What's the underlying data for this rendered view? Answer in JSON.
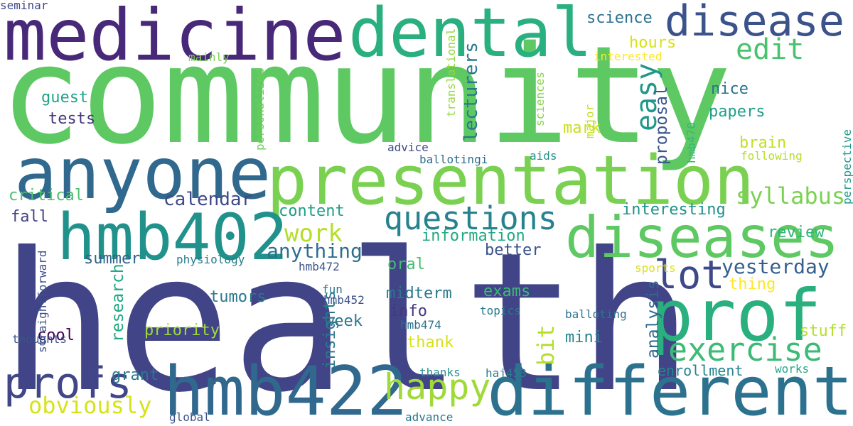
{
  "words": [
    {
      "text": "health",
      "color": "#414487",
      "vertical": false
    },
    {
      "text": "community",
      "color": "#5ec962",
      "vertical": false
    },
    {
      "text": "medicine",
      "color": "#482878",
      "vertical": false
    },
    {
      "text": "dental",
      "color": "#2aaf7f",
      "vertical": false
    },
    {
      "text": "disease",
      "color": "#3b528b",
      "vertical": false
    },
    {
      "text": "presentation",
      "color": "#7ad151",
      "vertical": false
    },
    {
      "text": "anyone",
      "color": "#31688e",
      "vertical": false
    },
    {
      "text": "hmb402",
      "color": "#21918c",
      "vertical": false
    },
    {
      "text": "diseases",
      "color": "#5ec962",
      "vertical": false
    },
    {
      "text": "prof",
      "color": "#2aaf7f",
      "vertical": false
    },
    {
      "text": "hmb422",
      "color": "#31688e",
      "vertical": false
    },
    {
      "text": "different",
      "color": "#2c728e",
      "vertical": false
    },
    {
      "text": "exercise",
      "color": "#3cbb75",
      "vertical": false
    },
    {
      "text": "profs",
      "color": "#404688",
      "vertical": false
    },
    {
      "text": "happy",
      "color": "#a0da39",
      "vertical": false
    },
    {
      "text": "lot",
      "color": "#3f4889",
      "vertical": false
    },
    {
      "text": "questions",
      "color": "#26828e",
      "vertical": false
    },
    {
      "text": "edit",
      "color": "#4ac16d",
      "vertical": false
    },
    {
      "text": "syllabus",
      "color": "#7ad151",
      "vertical": false
    },
    {
      "text": "work",
      "color": "#b5de2b",
      "vertical": false
    },
    {
      "text": "obviously",
      "color": "#d8e219",
      "vertical": false
    },
    {
      "text": "yesterday",
      "color": "#35608d",
      "vertical": false
    },
    {
      "text": "anything",
      "color": "#2e6f8e",
      "vertical": false
    },
    {
      "text": "calendar",
      "color": "#3e4a89",
      "vertical": false
    },
    {
      "text": "easy",
      "color": "#1f988b",
      "vertical": true
    },
    {
      "text": "tests",
      "color": "#453781",
      "vertical": false
    },
    {
      "text": "guest",
      "color": "#20a486",
      "vertical": false
    },
    {
      "text": "hours",
      "color": "#d8e219",
      "vertical": false
    },
    {
      "text": "science",
      "color": "#2c728e",
      "vertical": false
    },
    {
      "text": "nice",
      "color": "#2c728e",
      "vertical": false
    },
    {
      "text": "papers",
      "color": "#1f9e89",
      "vertical": false
    },
    {
      "text": "mark",
      "color": "#c8e020",
      "vertical": false
    },
    {
      "text": "brain",
      "color": "#c2df23",
      "vertical": false
    },
    {
      "text": "lecturers",
      "color": "#2a788e",
      "vertical": true
    },
    {
      "text": "proposal",
      "color": "#39568c",
      "vertical": true
    },
    {
      "text": "interesting",
      "color": "#21918c",
      "vertical": false
    },
    {
      "text": "review",
      "color": "#2fb47c",
      "vertical": false
    },
    {
      "text": "critical",
      "color": "#4ac16d",
      "vertical": false
    },
    {
      "text": "fall",
      "color": "#414487",
      "vertical": false
    },
    {
      "text": "content",
      "color": "#1f9e89",
      "vertical": false
    },
    {
      "text": "information",
      "color": "#22a884",
      "vertical": false
    },
    {
      "text": "summer",
      "color": "#33638d",
      "vertical": false
    },
    {
      "text": "physiology",
      "color": "#287d8e",
      "vertical": false
    },
    {
      "text": "oral",
      "color": "#44bf70",
      "vertical": false
    },
    {
      "text": "better",
      "color": "#3b528b",
      "vertical": false
    },
    {
      "text": "tumors",
      "color": "#2a788e",
      "vertical": false
    },
    {
      "text": "research",
      "color": "#22a884",
      "vertical": true
    },
    {
      "text": "midterm",
      "color": "#2a788e",
      "vertical": false
    },
    {
      "text": "exams",
      "color": "#3cbb75",
      "vertical": false
    },
    {
      "text": "info",
      "color": "#453781",
      "vertical": false
    },
    {
      "text": "week",
      "color": "#2a788e",
      "vertical": false
    },
    {
      "text": "bit",
      "color": "#b5de2b",
      "vertical": true
    },
    {
      "text": "mini",
      "color": "#25848e",
      "vertical": false
    },
    {
      "text": "priority",
      "color": "#a0da39",
      "vertical": false
    },
    {
      "text": "cool",
      "color": "#440154",
      "vertical": false
    },
    {
      "text": "thank",
      "color": "#d8e219",
      "vertical": false
    },
    {
      "text": "insights",
      "color": "#2a788e",
      "vertical": true
    },
    {
      "text": "analysis",
      "color": "#31688e",
      "vertical": true
    },
    {
      "text": "stuff",
      "color": "#b5de2b",
      "vertical": false
    },
    {
      "text": "enrollment",
      "color": "#25848e",
      "vertical": false
    },
    {
      "text": "grant",
      "color": "#2a788e",
      "vertical": false
    },
    {
      "text": "thing",
      "color": "#fde725",
      "vertical": false
    },
    {
      "text": "mainly",
      "color": "#7ad151",
      "vertical": false
    },
    {
      "text": "interested",
      "color": "#fde725",
      "vertical": false
    },
    {
      "text": "advice",
      "color": "#3e4989",
      "vertical": false
    },
    {
      "text": "translational",
      "color": "#95d840",
      "vertical": true
    },
    {
      "text": "sciences",
      "color": "#86d549",
      "vertical": true
    },
    {
      "text": "major",
      "color": "#c2df23",
      "vertical": true
    },
    {
      "text": "hmb470",
      "color": "#35b779",
      "vertical": true
    },
    {
      "text": "perspective",
      "color": "#1f988b",
      "vertical": true
    },
    {
      "text": "personalized",
      "color": "#6ece58",
      "vertical": true
    },
    {
      "text": "ballotingi",
      "color": "#2d708e",
      "vertical": false
    },
    {
      "text": "aids",
      "color": "#21918c",
      "vertical": false
    },
    {
      "text": "following",
      "color": "#b5de2b",
      "vertical": false
    },
    {
      "text": "hmb472",
      "color": "#3b528b",
      "vertical": false
    },
    {
      "text": "sports",
      "color": "#d8e219",
      "vertical": false
    },
    {
      "text": "fun",
      "color": "#2c728e",
      "vertical": false
    },
    {
      "text": "hmb452",
      "color": "#3b528b",
      "vertical": false
    },
    {
      "text": "topics",
      "color": "#2a788e",
      "vertical": false
    },
    {
      "text": "balloting",
      "color": "#2c728e",
      "vertical": false
    },
    {
      "text": "hmb474",
      "color": "#2c728e",
      "vertical": false
    },
    {
      "text": "thoughts",
      "color": "#3b528b",
      "vertical": false
    },
    {
      "text": "straightforward",
      "color": "#3b528b",
      "vertical": true
    },
    {
      "text": "thanks",
      "color": "#21918c",
      "vertical": false
    },
    {
      "text": "haj453",
      "color": "#287d8e",
      "vertical": false
    },
    {
      "text": "works",
      "color": "#22a884",
      "vertical": false
    },
    {
      "text": "global",
      "color": "#3b528b",
      "vertical": false
    },
    {
      "text": "advance",
      "color": "#2a788e",
      "vertical": false
    },
    {
      "text": "seminar",
      "color": "#3e4989",
      "vertical": false
    }
  ]
}
